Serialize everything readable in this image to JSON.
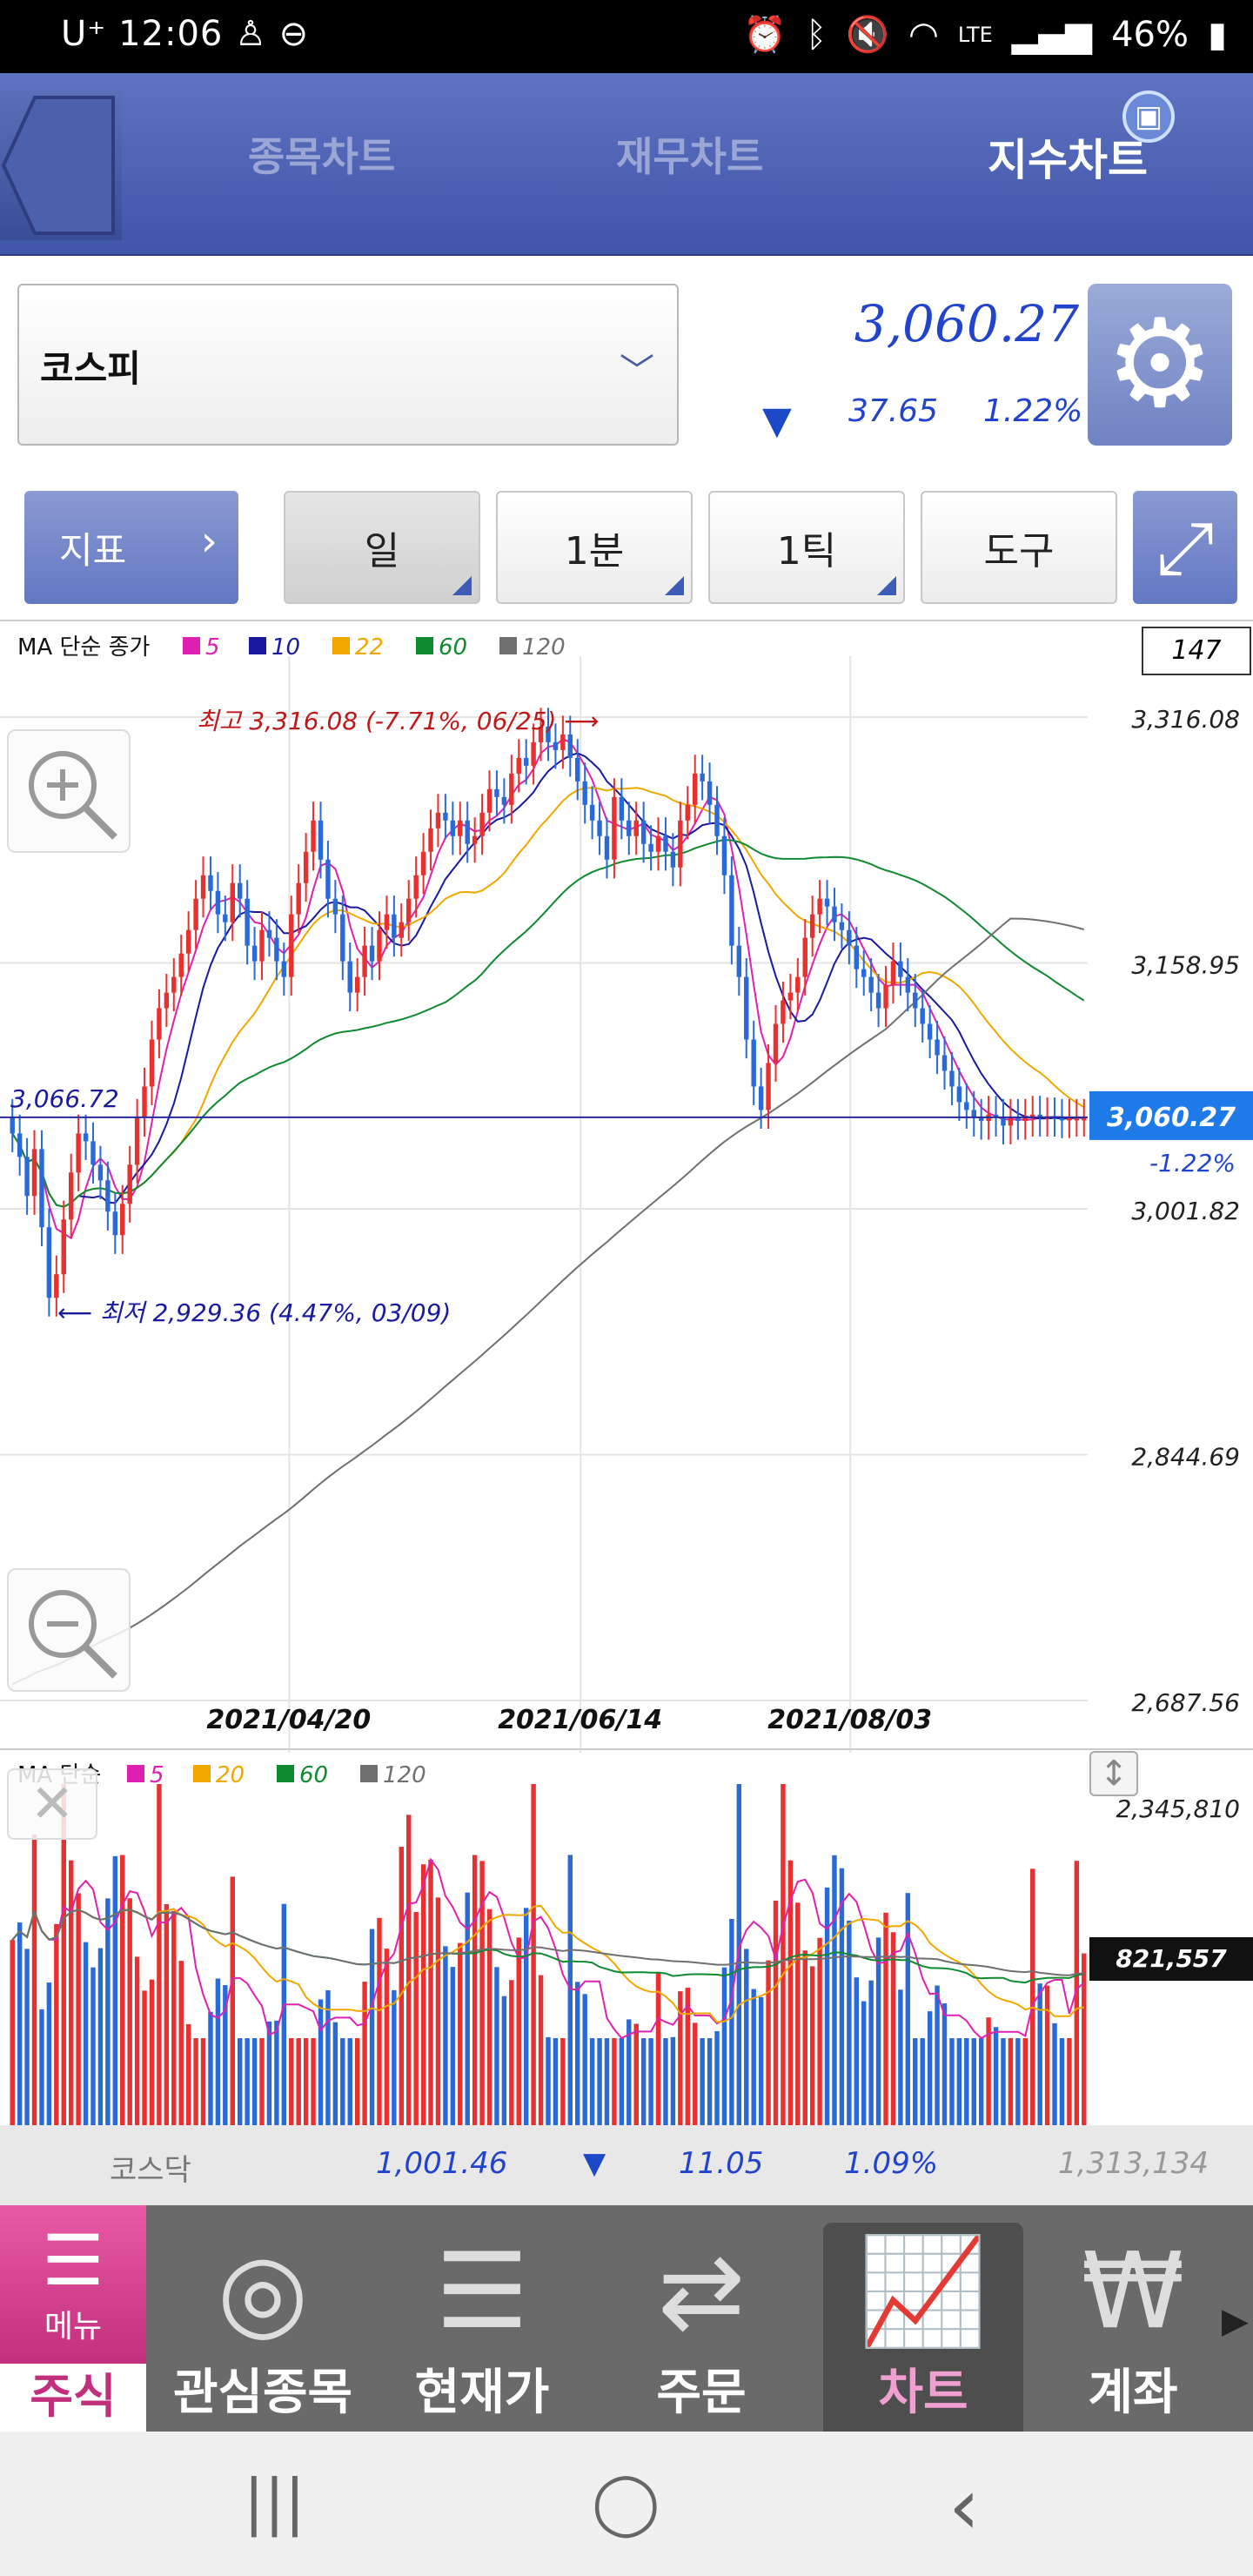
{
  "status_bar": {
    "carrier": "U⁺",
    "time": "12:06",
    "battery": "46%",
    "network": "LTE"
  },
  "tabs": [
    {
      "label": "종목차트"
    },
    {
      "label": "재무차트"
    },
    {
      "label": "지수차트"
    }
  ],
  "index_select": {
    "value": "코스피"
  },
  "quote": {
    "price": "3,060.27",
    "change": "37.65",
    "change_pct": "1.22%",
    "direction": "down"
  },
  "toolbar": {
    "indicator": "지표",
    "period": "일",
    "minute": "1분",
    "tick": "1틱",
    "tools": "도구"
  },
  "chart_data": {
    "type": "candlestick",
    "legend": "MA 단순 종가",
    "ma": [
      {
        "name": "5",
        "color": "#e020b0"
      },
      {
        "name": "10",
        "color": "#1a1aa0"
      },
      {
        "name": "22",
        "color": "#f0a800"
      },
      {
        "name": "60",
        "color": "#108a30"
      },
      {
        "name": "120",
        "color": "#707070"
      }
    ],
    "count": "147",
    "y_ticks": [
      "3,316.08",
      "3,158.95",
      "3,001.82",
      "2,844.69",
      "2,687.56"
    ],
    "x_ticks": [
      "2021/04/20",
      "2021/06/14",
      "2021/08/03"
    ],
    "current": "3,060.27",
    "current_pct": "-1.22%",
    "ref_line": "3,066.72",
    "high_annotation": "최고 3,316.08 (-7.71%, 06/25)",
    "low_annotation": "최저 2,929.36 (4.47%, 03/09)",
    "close": [
      3050,
      3035,
      3010,
      3040,
      2990,
      2945,
      2960,
      2995,
      3025,
      3050,
      3045,
      3030,
      3020,
      3000,
      2985,
      3005,
      3030,
      3060,
      3080,
      3110,
      3130,
      3140,
      3150,
      3165,
      3180,
      3200,
      3215,
      3205,
      3190,
      3185,
      3210,
      3200,
      3170,
      3160,
      3180,
      3175,
      3160,
      3150,
      3190,
      3210,
      3230,
      3250,
      3225,
      3200,
      3190,
      3160,
      3140,
      3150,
      3170,
      3160,
      3180,
      3190,
      3175,
      3185,
      3200,
      3215,
      3230,
      3245,
      3255,
      3250,
      3240,
      3250,
      3235,
      3240,
      3255,
      3270,
      3265,
      3260,
      3280,
      3290,
      3285,
      3300,
      3310,
      3300,
      3295,
      3305,
      3290,
      3275,
      3260,
      3250,
      3240,
      3225,
      3265,
      3250,
      3240,
      3250,
      3235,
      3230,
      3240,
      3230,
      3220,
      3250,
      3260,
      3280,
      3275,
      3260,
      3240,
      3215,
      3170,
      3150,
      3110,
      3080,
      3065,
      3095,
      3120,
      3135,
      3140,
      3150,
      3175,
      3190,
      3200,
      3195,
      3185,
      3180,
      3170,
      3155,
      3150,
      3140,
      3130,
      3145,
      3160,
      3150,
      3140,
      3130,
      3120,
      3110,
      3100,
      3090,
      3080,
      3070,
      3065,
      3060,
      3058,
      3062,
      3060,
      3055,
      3060,
      3058,
      3060,
      3062,
      3060,
      3061,
      3060,
      3059,
      3060,
      3060,
      3060
    ],
    "volume_legend": "MA 단순",
    "volume_ma": [
      {
        "name": "5",
        "color": "#e020b0"
      },
      {
        "name": "20",
        "color": "#f0a800"
      },
      {
        "name": "60",
        "color": "#108a30"
      },
      {
        "name": "120",
        "color": "#707070"
      }
    ],
    "volume_ticks": [
      "2,345,810",
      "821,557"
    ]
  },
  "ticker": {
    "name": "코스닥",
    "value": "1,001.46",
    "change": "11.05",
    "pct": "1.09%",
    "volume": "1,313,134"
  },
  "bottom_nav": {
    "menu": "메뉴",
    "active_section": "주식",
    "items": [
      "관심종목",
      "현재가",
      "주문",
      "차트",
      "계좌"
    ]
  },
  "sysnav": {
    "recents": "|||",
    "home": "◯",
    "back": "‹"
  }
}
